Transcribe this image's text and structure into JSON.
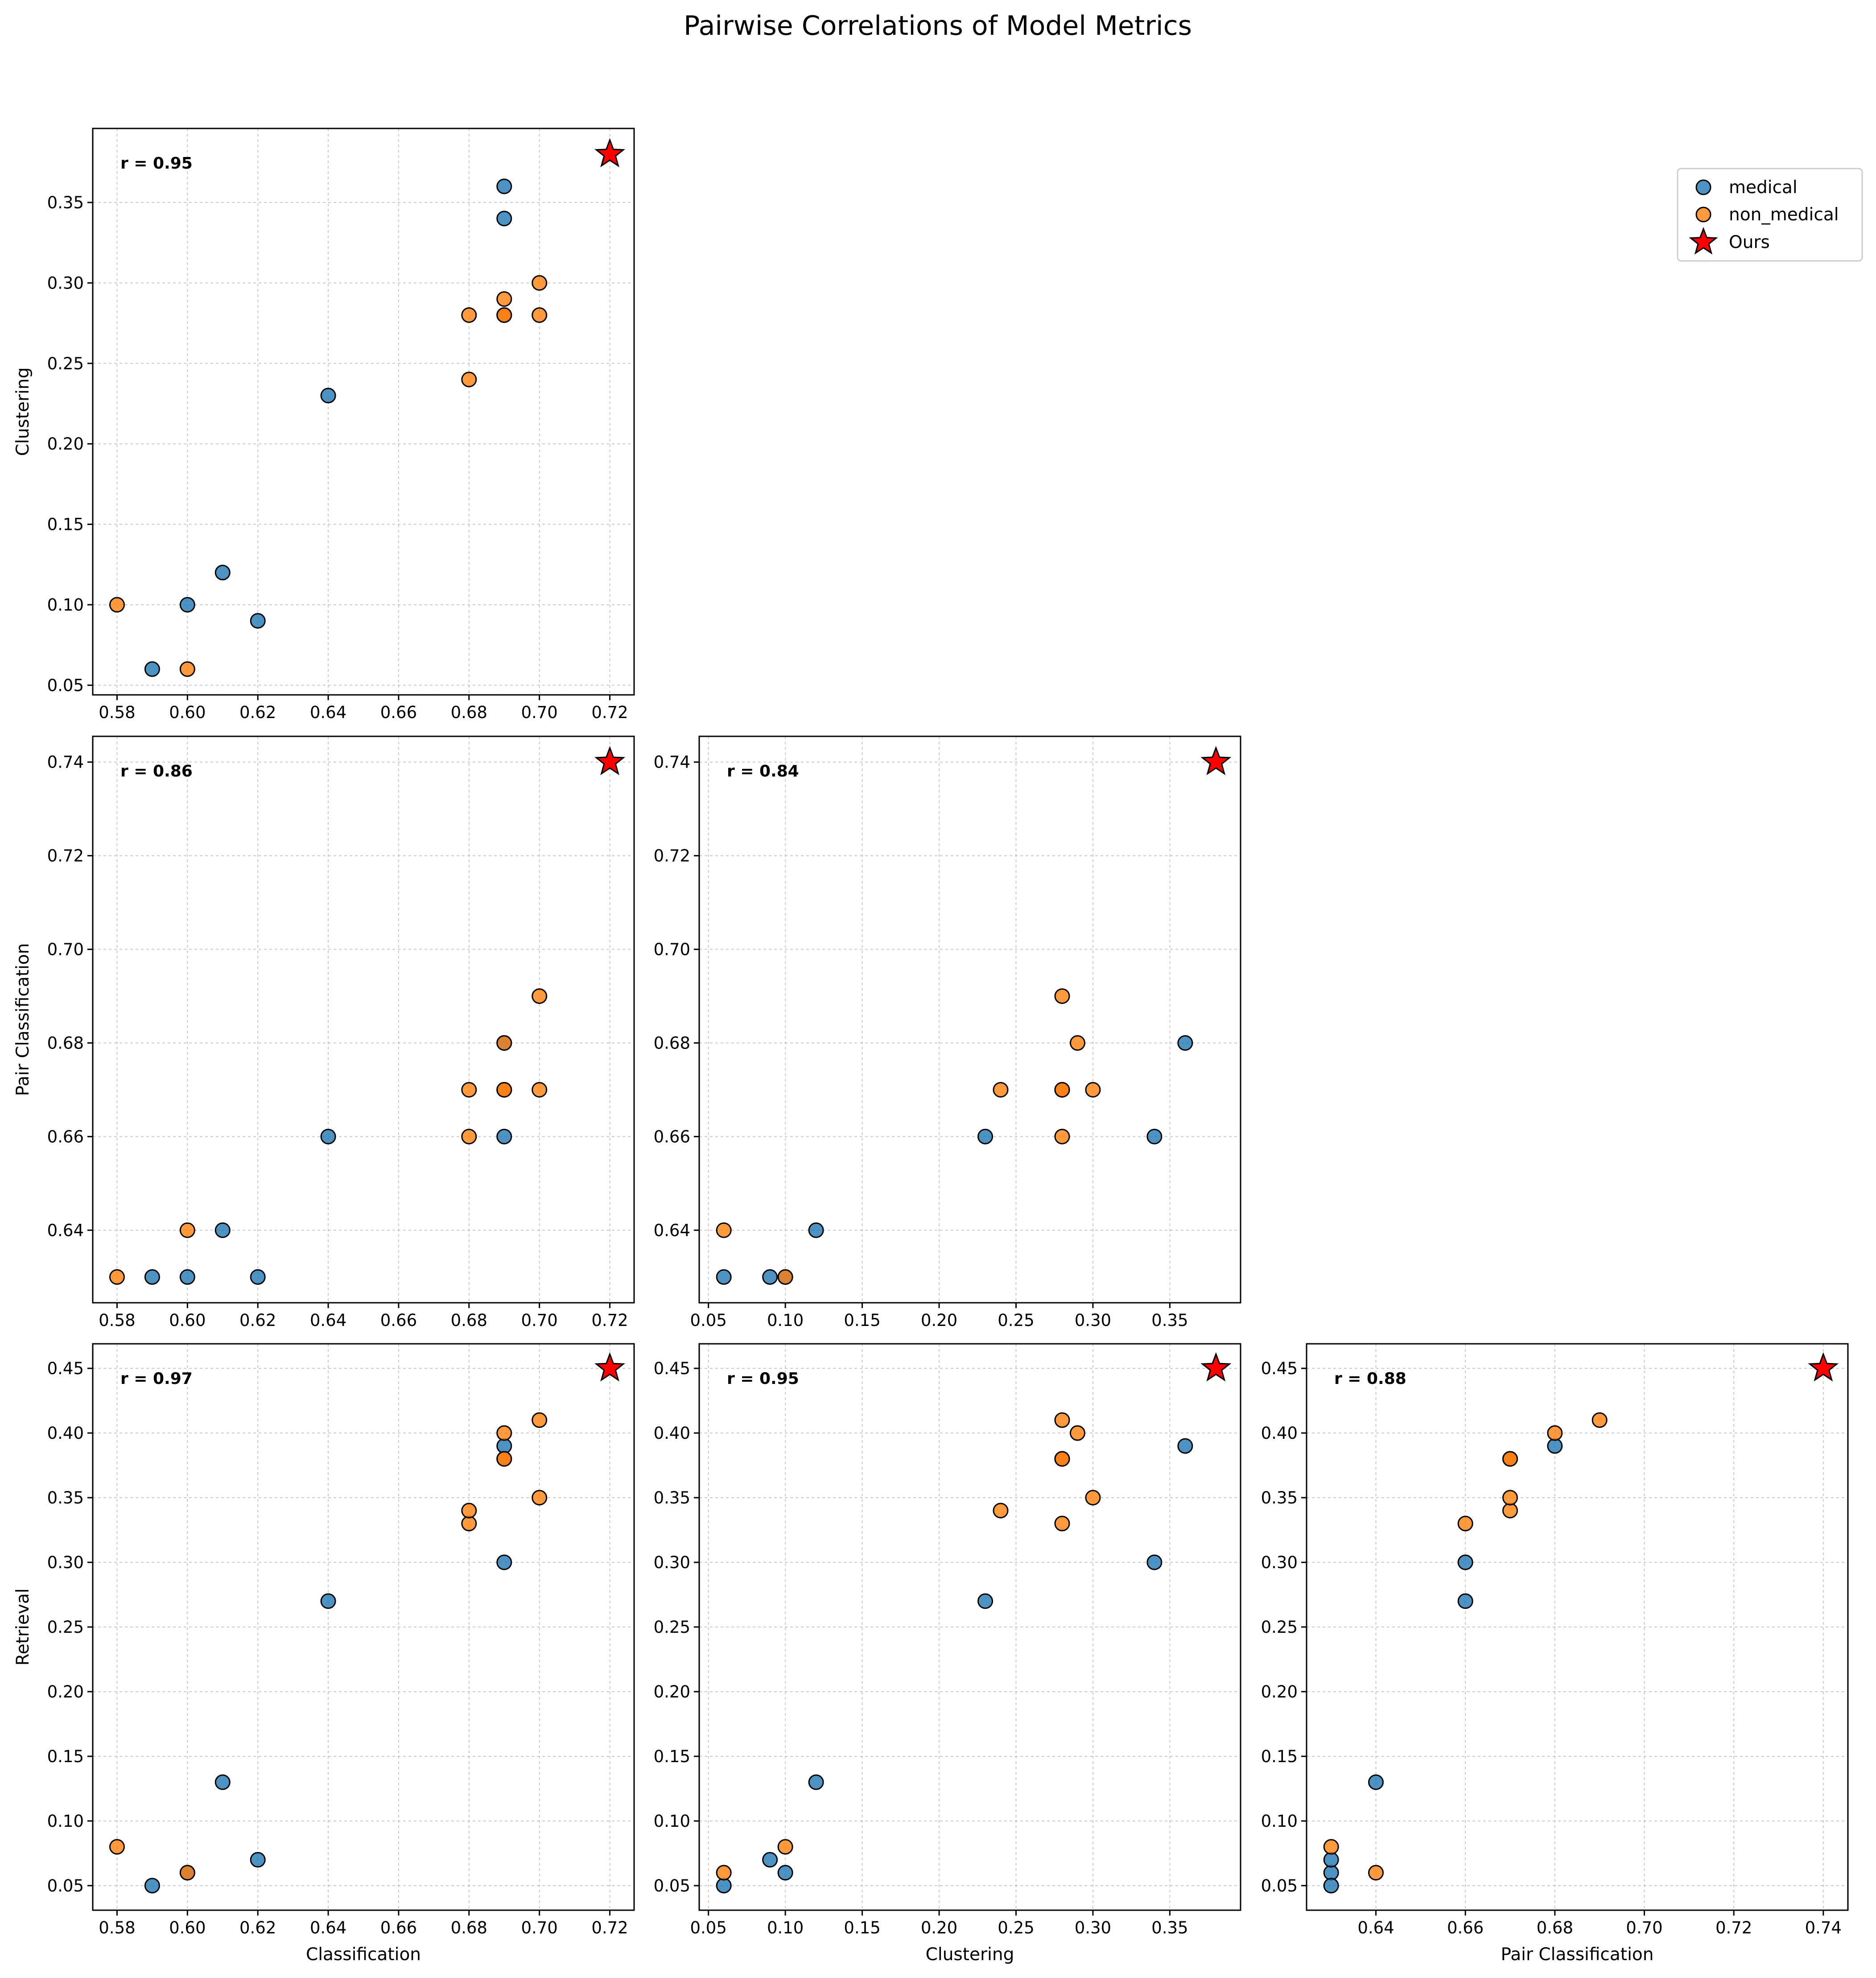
{
  "chart_data": {
    "type": "scatter",
    "title": "Pairwise Correlations of Model Metrics",
    "legend": {
      "placement": "top-right",
      "entries": [
        {
          "name": "medical",
          "color": "#1f77b4"
        },
        {
          "name": "non_medical",
          "color": "#ff7f0e"
        },
        {
          "name": "Ours",
          "color": "#ff0000",
          "marker": "star"
        }
      ]
    },
    "grid": true,
    "metrics": {
      "Classification": {
        "medical": [
          0.69,
          0.69,
          0.64,
          0.61,
          0.6,
          0.62,
          0.59,
          0.69
        ],
        "non_medical": [
          0.68,
          0.68,
          0.69,
          0.69,
          0.7,
          0.7,
          0.58,
          0.6,
          0.69
        ],
        "ours": 0.72
      },
      "Clustering": {
        "medical": [
          0.36,
          0.34,
          0.23,
          0.12,
          0.1,
          0.09,
          0.06,
          0.28
        ],
        "non_medical": [
          0.28,
          0.24,
          0.29,
          0.28,
          0.3,
          0.28,
          0.1,
          0.06,
          0.28
        ],
        "ours": 0.38
      },
      "Pair Classification": {
        "medical": [
          0.68,
          0.66,
          0.66,
          0.64,
          0.63,
          0.63,
          0.63,
          0.67
        ],
        "non_medical": [
          0.66,
          0.67,
          0.68,
          0.67,
          0.67,
          0.69,
          0.63,
          0.64,
          0.67
        ],
        "ours": 0.74
      },
      "Retrieval": {
        "medical": [
          0.39,
          0.3,
          0.27,
          0.13,
          0.06,
          0.07,
          0.05,
          0.38
        ],
        "non_medical": [
          0.33,
          0.34,
          0.4,
          0.38,
          0.35,
          0.41,
          0.08,
          0.06,
          0.38
        ],
        "ours": 0.45
      }
    },
    "panels": [
      {
        "x": "Classification",
        "y": "Clustering",
        "r_label": "r = 0.95",
        "xticks": [
          "0.58",
          "0.60",
          "0.62",
          "0.64",
          "0.66",
          "0.68",
          "0.70",
          "0.72"
        ],
        "yticks": [
          "0.05",
          "0.10",
          "0.15",
          "0.20",
          "0.25",
          "0.30",
          "0.35"
        ],
        "xlim": [
          0.5731,
          0.7269
        ],
        "ylim": [
          0.044,
          0.396
        ]
      },
      {
        "x": "Classification",
        "y": "Pair Classification",
        "r_label": "r = 0.86",
        "xticks": [
          "0.58",
          "0.60",
          "0.62",
          "0.64",
          "0.66",
          "0.68",
          "0.70",
          "0.72"
        ],
        "yticks": [
          "0.64",
          "0.66",
          "0.68",
          "0.70",
          "0.72",
          "0.74"
        ],
        "xlim": [
          0.5731,
          0.7269
        ],
        "ylim": [
          0.6245,
          0.7455
        ]
      },
      {
        "x": "Clustering",
        "y": "Pair Classification",
        "r_label": "r = 0.84",
        "xticks": [
          "0.05",
          "0.10",
          "0.15",
          "0.20",
          "0.25",
          "0.30",
          "0.35"
        ],
        "yticks": [
          "0.64",
          "0.66",
          "0.68",
          "0.70",
          "0.72",
          "0.74"
        ],
        "xlim": [
          0.044,
          0.396
        ],
        "ylim": [
          0.6245,
          0.7455
        ]
      },
      {
        "x": "Classification",
        "y": "Retrieval",
        "r_label": "r = 0.97",
        "xticks": [
          "0.58",
          "0.60",
          "0.62",
          "0.64",
          "0.66",
          "0.68",
          "0.70",
          "0.72"
        ],
        "yticks": [
          "0.05",
          "0.10",
          "0.15",
          "0.20",
          "0.25",
          "0.30",
          "0.35",
          "0.40",
          "0.45"
        ],
        "xlim": [
          0.5731,
          0.7269
        ],
        "ylim": [
          0.031,
          0.469
        ]
      },
      {
        "x": "Clustering",
        "y": "Retrieval",
        "r_label": "r = 0.95",
        "xticks": [
          "0.05",
          "0.10",
          "0.15",
          "0.20",
          "0.25",
          "0.30",
          "0.35"
        ],
        "yticks": [
          "0.05",
          "0.10",
          "0.15",
          "0.20",
          "0.25",
          "0.30",
          "0.35",
          "0.40",
          "0.45"
        ],
        "xlim": [
          0.044,
          0.396
        ],
        "ylim": [
          0.031,
          0.469
        ]
      },
      {
        "x": "Pair Classification",
        "y": "Retrieval",
        "r_label": "r = 0.88",
        "xticks": [
          "0.64",
          "0.66",
          "0.68",
          "0.70",
          "0.72",
          "0.74"
        ],
        "yticks": [
          "0.05",
          "0.10",
          "0.15",
          "0.20",
          "0.25",
          "0.30",
          "0.35",
          "0.40",
          "0.45"
        ],
        "xlim": [
          0.6245,
          0.7455
        ],
        "ylim": [
          0.031,
          0.469
        ]
      }
    ],
    "axis_labels": {
      "y_row1": "Clustering",
      "y_row2": "Pair Classification",
      "y_row3": "Retrieval",
      "x_col1": "Classification",
      "x_col2": "Clustering",
      "x_col3": "Pair Classification"
    }
  }
}
